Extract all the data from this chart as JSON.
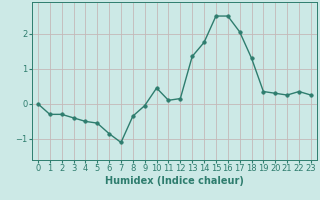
{
  "x": [
    0,
    1,
    2,
    3,
    4,
    5,
    6,
    7,
    8,
    9,
    10,
    11,
    12,
    13,
    14,
    15,
    16,
    17,
    18,
    19,
    20,
    21,
    22,
    23
  ],
  "y": [
    0.0,
    -0.3,
    -0.3,
    -0.4,
    -0.5,
    -0.55,
    -0.85,
    -1.1,
    -0.35,
    -0.05,
    0.45,
    0.1,
    0.15,
    1.35,
    1.75,
    2.5,
    2.5,
    2.05,
    1.3,
    0.35,
    0.3,
    0.25,
    0.35,
    0.25
  ],
  "line_color": "#2e7d6e",
  "marker": "o",
  "marker_size": 2.5,
  "line_width": 1.0,
  "bg_color": "#cce9e6",
  "grid_color_h": "#c4b8b8",
  "grid_color_v": "#c4b8b8",
  "xlabel": "Humidex (Indice chaleur)",
  "xlabel_fontsize": 7,
  "yticks": [
    -1,
    0,
    1,
    2
  ],
  "xticks": [
    0,
    1,
    2,
    3,
    4,
    5,
    6,
    7,
    8,
    9,
    10,
    11,
    12,
    13,
    14,
    15,
    16,
    17,
    18,
    19,
    20,
    21,
    22,
    23
  ],
  "xlim": [
    -0.5,
    23.5
  ],
  "ylim": [
    -1.6,
    2.9
  ],
  "tick_fontsize": 6,
  "tick_color": "#2e7d6e",
  "axis_color": "#2e7d6e"
}
